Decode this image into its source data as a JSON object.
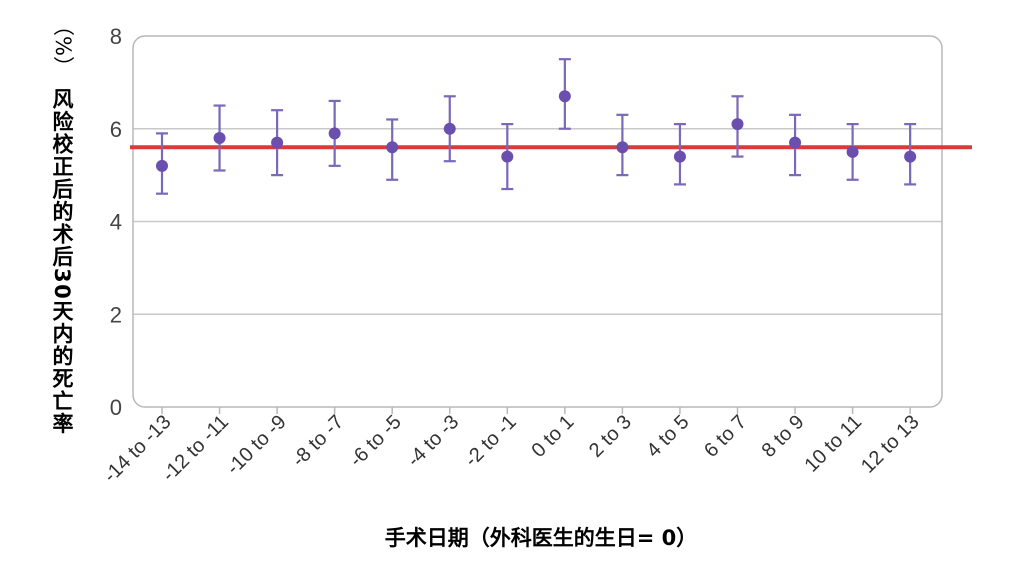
{
  "chart_data": {
    "type": "scatter",
    "xlabel": "手术日期（外科医生的生日= 0）",
    "ylabel": "风险校正后的术后30天内的死亡率",
    "ylabel_unit": "（%）",
    "ylim": [
      0,
      8
    ],
    "yticks": [
      "0",
      "2",
      "4",
      "6",
      "8"
    ],
    "grid": true,
    "categories": [
      "-14 to -13",
      "-12 to -11",
      "-10 to -9",
      "-8 to -7",
      "-6 to -5",
      "-4 to -3",
      "-2 to -1",
      "0 to 1",
      "2 to 3",
      "4 to 5",
      "6 to 7",
      "8 to 9",
      "10 to 11",
      "12 to 13"
    ],
    "series": [
      {
        "values": [
          5.2,
          5.8,
          5.7,
          5.9,
          5.6,
          6.0,
          5.4,
          6.7,
          5.6,
          5.4,
          6.1,
          5.7,
          5.5,
          5.4
        ],
        "lower": [
          4.6,
          5.1,
          5.0,
          5.2,
          4.9,
          5.3,
          4.7,
          6.0,
          5.0,
          4.8,
          5.4,
          5.0,
          4.9,
          4.8
        ],
        "upper": [
          5.9,
          6.5,
          6.4,
          6.6,
          6.2,
          6.7,
          6.1,
          7.5,
          6.3,
          6.1,
          6.7,
          6.3,
          6.1,
          6.1
        ]
      }
    ],
    "reference_line": 5.6,
    "colors": {
      "points": "#6a4fae",
      "error_bars": "#7a68b8",
      "reference_line": "#d93a3a",
      "grid": "#c9c9c9",
      "frame": "#b8b8b8"
    }
  }
}
